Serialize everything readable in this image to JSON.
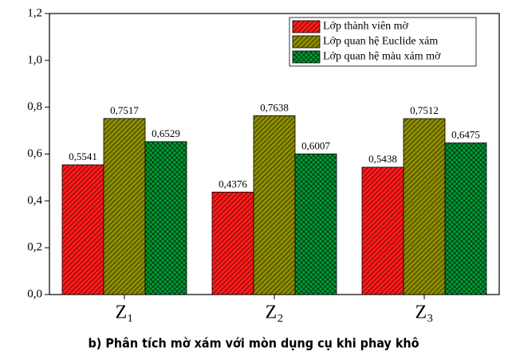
{
  "chart_data": {
    "type": "bar",
    "caption": "b) Phân tích mờ xám với mòn dụng cụ khi phay khô",
    "categories": [
      "Z₁",
      "Z₂",
      "Z₃"
    ],
    "series": [
      {
        "name": "Lớp thành viên mờ",
        "color": "#ff1a1a",
        "values": [
          0.5541,
          0.4376,
          0.5438
        ],
        "value_labels": [
          "0,5541",
          "0,4376",
          "0,5438"
        ]
      },
      {
        "name": "Lớp quan hệ Euclide xám",
        "color": "#8c8c00",
        "values": [
          0.7517,
          0.7638,
          0.7512
        ],
        "value_labels": [
          "0,7517",
          "0,7638",
          "0,7512"
        ]
      },
      {
        "name": "Lớp quan hệ màu xám mờ",
        "color": "#009933",
        "values": [
          0.6529,
          0.6007,
          0.6475
        ],
        "value_labels": [
          "0,6529",
          "0,6007",
          "0,6475"
        ]
      }
    ],
    "ylim": [
      0,
      1.2
    ],
    "yticks": [
      {
        "value": 0,
        "label": "0,0"
      },
      {
        "value": 0.2,
        "label": "0,2"
      },
      {
        "value": 0.4,
        "label": "0,4"
      },
      {
        "value": 0.6,
        "label": "0,6"
      },
      {
        "value": 0.8,
        "label": "0,8"
      },
      {
        "value": 1.0,
        "label": "1,0"
      },
      {
        "value": 1.2,
        "label": "1,2"
      }
    ],
    "legend": "top-right",
    "grid": false
  }
}
